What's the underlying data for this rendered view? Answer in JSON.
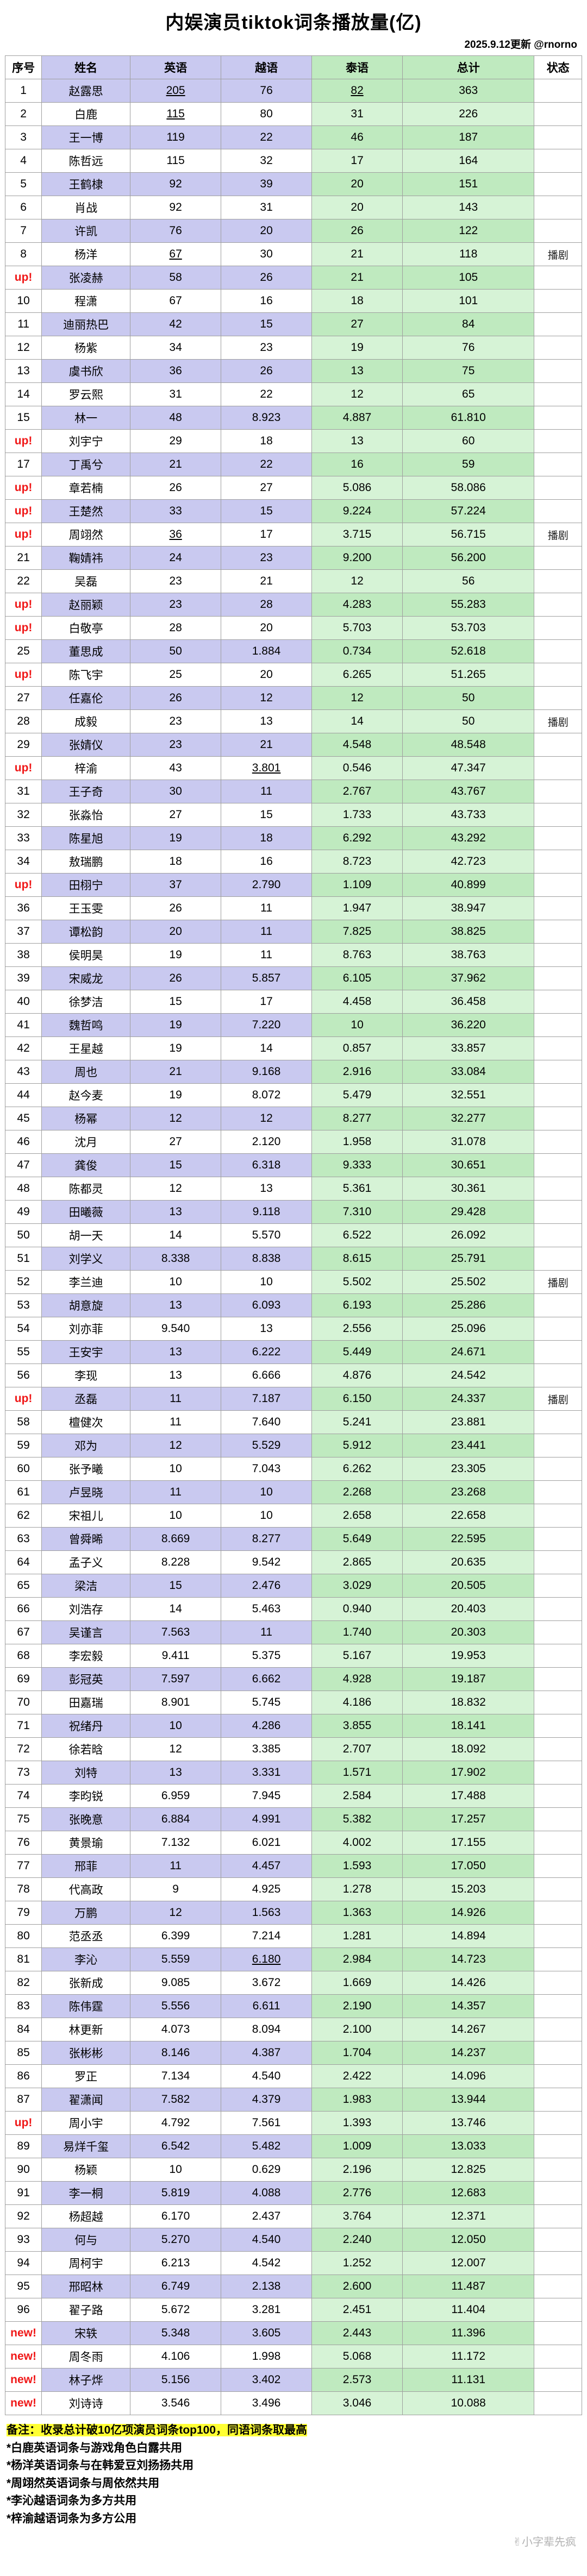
{
  "page": {
    "title": "内娱演员tiktok词条播放量(亿)",
    "updated": "2025.9.12更新 @rnorno",
    "watermark": "✌小字辈先疯"
  },
  "colors": {
    "lavender": "#c9c9f0",
    "green": "#bfeabf",
    "greenLight": "#d6f3d6",
    "markRed": "#f01818",
    "noteHighlight": "#ffff33",
    "border": "#9f9f9f",
    "watermarkGray": "#b2b2b2"
  },
  "chart_data": {
    "type": "table",
    "title": "内娱演员tiktok词条播放量(亿)",
    "unit": "亿",
    "columns": [
      "序号",
      "姓名",
      "英语",
      "越语",
      "泰语",
      "总计",
      "状态"
    ],
    "rows": [
      {
        "n": "1",
        "name": "赵露思",
        "en": "205",
        "vi": "76",
        "th": "82",
        "total": "363",
        "ul": [
          "en",
          "th"
        ]
      },
      {
        "n": "2",
        "name": "白鹿",
        "en": "115",
        "vi": "80",
        "th": "31",
        "total": "226",
        "ul": [
          "en"
        ]
      },
      {
        "n": "3",
        "name": "王一博",
        "en": "119",
        "vi": "22",
        "th": "46",
        "total": "187"
      },
      {
        "n": "4",
        "name": "陈哲远",
        "en": "115",
        "vi": "32",
        "th": "17",
        "total": "164"
      },
      {
        "n": "5",
        "name": "王鹤棣",
        "en": "92",
        "vi": "39",
        "th": "20",
        "total": "151"
      },
      {
        "n": "6",
        "name": "肖战",
        "en": "92",
        "vi": "31",
        "th": "20",
        "total": "143"
      },
      {
        "n": "7",
        "name": "许凯",
        "en": "76",
        "vi": "20",
        "th": "26",
        "total": "122"
      },
      {
        "n": "8",
        "name": "杨洋",
        "en": "67",
        "vi": "30",
        "th": "21",
        "total": "118",
        "status": "播剧",
        "ul": [
          "en"
        ]
      },
      {
        "n": "up!",
        "name": "张凌赫",
        "en": "58",
        "vi": "26",
        "th": "21",
        "total": "105"
      },
      {
        "n": "10",
        "name": "程潇",
        "en": "67",
        "vi": "16",
        "th": "18",
        "total": "101"
      },
      {
        "n": "11",
        "name": "迪丽热巴",
        "en": "42",
        "vi": "15",
        "th": "27",
        "total": "84"
      },
      {
        "n": "12",
        "name": "杨紫",
        "en": "34",
        "vi": "23",
        "th": "19",
        "total": "76"
      },
      {
        "n": "13",
        "name": "虞书欣",
        "en": "36",
        "vi": "26",
        "th": "13",
        "total": "75"
      },
      {
        "n": "14",
        "name": "罗云熙",
        "en": "31",
        "vi": "22",
        "th": "12",
        "total": "65"
      },
      {
        "n": "15",
        "name": "林一",
        "en": "48",
        "vi": "8.923",
        "th": "4.887",
        "total": "61.810"
      },
      {
        "n": "up!",
        "name": "刘宇宁",
        "en": "29",
        "vi": "18",
        "th": "13",
        "total": "60"
      },
      {
        "n": "17",
        "name": "丁禹兮",
        "en": "21",
        "vi": "22",
        "th": "16",
        "total": "59"
      },
      {
        "n": "up!",
        "name": "章若楠",
        "en": "26",
        "vi": "27",
        "th": "5.086",
        "total": "58.086"
      },
      {
        "n": "up!",
        "name": "王楚然",
        "en": "33",
        "vi": "15",
        "th": "9.224",
        "total": "57.224"
      },
      {
        "n": "up!",
        "name": "周翊然",
        "en": "36",
        "vi": "17",
        "th": "3.715",
        "total": "56.715",
        "status": "播剧",
        "ul": [
          "en"
        ]
      },
      {
        "n": "21",
        "name": "鞠婧祎",
        "en": "24",
        "vi": "23",
        "th": "9.200",
        "total": "56.200"
      },
      {
        "n": "22",
        "name": "吴磊",
        "en": "23",
        "vi": "21",
        "th": "12",
        "total": "56"
      },
      {
        "n": "up!",
        "name": "赵丽颖",
        "en": "23",
        "vi": "28",
        "th": "4.283",
        "total": "55.283"
      },
      {
        "n": "up!",
        "name": "白敬亭",
        "en": "28",
        "vi": "20",
        "th": "5.703",
        "total": "53.703"
      },
      {
        "n": "25",
        "name": "董思成",
        "en": "50",
        "vi": "1.884",
        "th": "0.734",
        "total": "52.618"
      },
      {
        "n": "up!",
        "name": "陈飞宇",
        "en": "25",
        "vi": "20",
        "th": "6.265",
        "total": "51.265"
      },
      {
        "n": "27",
        "name": "任嘉伦",
        "en": "26",
        "vi": "12",
        "th": "12",
        "total": "50"
      },
      {
        "n": "28",
        "name": "成毅",
        "en": "23",
        "vi": "13",
        "th": "14",
        "total": "50",
        "status": "播剧"
      },
      {
        "n": "29",
        "name": "张婧仪",
        "en": "23",
        "vi": "21",
        "th": "4.548",
        "total": "48.548"
      },
      {
        "n": "up!",
        "name": "梓渝",
        "en": "43",
        "vi": "3.801",
        "th": "0.546",
        "total": "47.347",
        "ul": [
          "vi"
        ]
      },
      {
        "n": "31",
        "name": "王子奇",
        "en": "30",
        "vi": "11",
        "th": "2.767",
        "total": "43.767"
      },
      {
        "n": "32",
        "name": "张淼怡",
        "en": "27",
        "vi": "15",
        "th": "1.733",
        "total": "43.733"
      },
      {
        "n": "33",
        "name": "陈星旭",
        "en": "19",
        "vi": "18",
        "th": "6.292",
        "total": "43.292"
      },
      {
        "n": "34",
        "name": "敖瑞鹏",
        "en": "18",
        "vi": "16",
        "th": "8.723",
        "total": "42.723"
      },
      {
        "n": "up!",
        "name": "田栩宁",
        "en": "37",
        "vi": "2.790",
        "th": "1.109",
        "total": "40.899"
      },
      {
        "n": "36",
        "name": "王玉雯",
        "en": "26",
        "vi": "11",
        "th": "1.947",
        "total": "38.947"
      },
      {
        "n": "37",
        "name": "谭松韵",
        "en": "20",
        "vi": "11",
        "th": "7.825",
        "total": "38.825"
      },
      {
        "n": "38",
        "name": "侯明昊",
        "en": "19",
        "vi": "11",
        "th": "8.763",
        "total": "38.763"
      },
      {
        "n": "39",
        "name": "宋威龙",
        "en": "26",
        "vi": "5.857",
        "th": "6.105",
        "total": "37.962"
      },
      {
        "n": "40",
        "name": "徐梦洁",
        "en": "15",
        "vi": "17",
        "th": "4.458",
        "total": "36.458"
      },
      {
        "n": "41",
        "name": "魏哲鸣",
        "en": "19",
        "vi": "7.220",
        "th": "10",
        "total": "36.220"
      },
      {
        "n": "42",
        "name": "王星越",
        "en": "19",
        "vi": "14",
        "th": "0.857",
        "total": "33.857"
      },
      {
        "n": "43",
        "name": "周也",
        "en": "21",
        "vi": "9.168",
        "th": "2.916",
        "total": "33.084"
      },
      {
        "n": "44",
        "name": "赵今麦",
        "en": "19",
        "vi": "8.072",
        "th": "5.479",
        "total": "32.551"
      },
      {
        "n": "45",
        "name": "杨幂",
        "en": "12",
        "vi": "12",
        "th": "8.277",
        "total": "32.277"
      },
      {
        "n": "46",
        "name": "沈月",
        "en": "27",
        "vi": "2.120",
        "th": "1.958",
        "total": "31.078"
      },
      {
        "n": "47",
        "name": "龚俊",
        "en": "15",
        "vi": "6.318",
        "th": "9.333",
        "total": "30.651"
      },
      {
        "n": "48",
        "name": "陈都灵",
        "en": "12",
        "vi": "13",
        "th": "5.361",
        "total": "30.361"
      },
      {
        "n": "49",
        "name": "田曦薇",
        "en": "13",
        "vi": "9.118",
        "th": "7.310",
        "total": "29.428"
      },
      {
        "n": "50",
        "name": "胡一天",
        "en": "14",
        "vi": "5.570",
        "th": "6.522",
        "total": "26.092"
      },
      {
        "n": "51",
        "name": "刘学义",
        "en": "8.338",
        "vi": "8.838",
        "th": "8.615",
        "total": "25.791"
      },
      {
        "n": "52",
        "name": "李兰迪",
        "en": "10",
        "vi": "10",
        "th": "5.502",
        "total": "25.502",
        "status": "播剧"
      },
      {
        "n": "53",
        "name": "胡意旋",
        "en": "13",
        "vi": "6.093",
        "th": "6.193",
        "total": "25.286"
      },
      {
        "n": "54",
        "name": "刘亦菲",
        "en": "9.540",
        "vi": "13",
        "th": "2.556",
        "total": "25.096"
      },
      {
        "n": "55",
        "name": "王安宇",
        "en": "13",
        "vi": "6.222",
        "th": "5.449",
        "total": "24.671"
      },
      {
        "n": "56",
        "name": "李现",
        "en": "13",
        "vi": "6.666",
        "th": "4.876",
        "total": "24.542"
      },
      {
        "n": "up!",
        "name": "丞磊",
        "en": "11",
        "vi": "7.187",
        "th": "6.150",
        "total": "24.337",
        "status": "播剧"
      },
      {
        "n": "58",
        "name": "檀健次",
        "en": "11",
        "vi": "7.640",
        "th": "5.241",
        "total": "23.881"
      },
      {
        "n": "59",
        "name": "邓为",
        "en": "12",
        "vi": "5.529",
        "th": "5.912",
        "total": "23.441"
      },
      {
        "n": "60",
        "name": "张予曦",
        "en": "10",
        "vi": "7.043",
        "th": "6.262",
        "total": "23.305"
      },
      {
        "n": "61",
        "name": "卢昱晓",
        "en": "11",
        "vi": "10",
        "th": "2.268",
        "total": "23.268"
      },
      {
        "n": "62",
        "name": "宋祖儿",
        "en": "10",
        "vi": "10",
        "th": "2.658",
        "total": "22.658"
      },
      {
        "n": "63",
        "name": "曾舜晞",
        "en": "8.669",
        "vi": "8.277",
        "th": "5.649",
        "total": "22.595"
      },
      {
        "n": "64",
        "name": "孟子义",
        "en": "8.228",
        "vi": "9.542",
        "th": "2.865",
        "total": "20.635"
      },
      {
        "n": "65",
        "name": "梁洁",
        "en": "15",
        "vi": "2.476",
        "th": "3.029",
        "total": "20.505"
      },
      {
        "n": "66",
        "name": "刘浩存",
        "en": "14",
        "vi": "5.463",
        "th": "0.940",
        "total": "20.403"
      },
      {
        "n": "67",
        "name": "吴谨言",
        "en": "7.563",
        "vi": "11",
        "th": "1.740",
        "total": "20.303"
      },
      {
        "n": "68",
        "name": "李宏毅",
        "en": "9.411",
        "vi": "5.375",
        "th": "5.167",
        "total": "19.953"
      },
      {
        "n": "69",
        "name": "彭冠英",
        "en": "7.597",
        "vi": "6.662",
        "th": "4.928",
        "total": "19.187"
      },
      {
        "n": "70",
        "name": "田嘉瑞",
        "en": "8.901",
        "vi": "5.745",
        "th": "4.186",
        "total": "18.832"
      },
      {
        "n": "71",
        "name": "祝绪丹",
        "en": "10",
        "vi": "4.286",
        "th": "3.855",
        "total": "18.141"
      },
      {
        "n": "72",
        "name": "徐若晗",
        "en": "12",
        "vi": "3.385",
        "th": "2.707",
        "total": "18.092"
      },
      {
        "n": "73",
        "name": "刘特",
        "en": "13",
        "vi": "3.331",
        "th": "1.571",
        "total": "17.902"
      },
      {
        "n": "74",
        "name": "李昀锐",
        "en": "6.959",
        "vi": "7.945",
        "th": "2.584",
        "total": "17.488"
      },
      {
        "n": "75",
        "name": "张晚意",
        "en": "6.884",
        "vi": "4.991",
        "th": "5.382",
        "total": "17.257"
      },
      {
        "n": "76",
        "name": "黄景瑜",
        "en": "7.132",
        "vi": "6.021",
        "th": "4.002",
        "total": "17.155"
      },
      {
        "n": "77",
        "name": "邢菲",
        "en": "11",
        "vi": "4.457",
        "th": "1.593",
        "total": "17.050"
      },
      {
        "n": "78",
        "name": "代高政",
        "en": "9",
        "vi": "4.925",
        "th": "1.278",
        "total": "15.203"
      },
      {
        "n": "79",
        "name": "万鹏",
        "en": "12",
        "vi": "1.563",
        "th": "1.363",
        "total": "14.926"
      },
      {
        "n": "80",
        "name": "范丞丞",
        "en": "6.399",
        "vi": "7.214",
        "th": "1.281",
        "total": "14.894"
      },
      {
        "n": "81",
        "name": "李沁",
        "en": "5.559",
        "vi": "6.180",
        "th": "2.984",
        "total": "14.723",
        "ul": [
          "vi"
        ]
      },
      {
        "n": "82",
        "name": "张新成",
        "en": "9.085",
        "vi": "3.672",
        "th": "1.669",
        "total": "14.426"
      },
      {
        "n": "83",
        "name": "陈伟霆",
        "en": "5.556",
        "vi": "6.611",
        "th": "2.190",
        "total": "14.357"
      },
      {
        "n": "84",
        "name": "林更新",
        "en": "4.073",
        "vi": "8.094",
        "th": "2.100",
        "total": "14.267"
      },
      {
        "n": "85",
        "name": "张彬彬",
        "en": "8.146",
        "vi": "4.387",
        "th": "1.704",
        "total": "14.237"
      },
      {
        "n": "86",
        "name": "罗正",
        "en": "7.134",
        "vi": "4.540",
        "th": "2.422",
        "total": "14.096"
      },
      {
        "n": "87",
        "name": "翟潇闻",
        "en": "7.582",
        "vi": "4.379",
        "th": "1.983",
        "total": "13.944"
      },
      {
        "n": "up!",
        "name": "周小宇",
        "en": "4.792",
        "vi": "7.561",
        "th": "1.393",
        "total": "13.746"
      },
      {
        "n": "89",
        "name": "易烊千玺",
        "en": "6.542",
        "vi": "5.482",
        "th": "1.009",
        "total": "13.033"
      },
      {
        "n": "90",
        "name": "杨颖",
        "en": "10",
        "vi": "0.629",
        "th": "2.196",
        "total": "12.825"
      },
      {
        "n": "91",
        "name": "李一桐",
        "en": "5.819",
        "vi": "4.088",
        "th": "2.776",
        "total": "12.683"
      },
      {
        "n": "92",
        "name": "杨超越",
        "en": "6.170",
        "vi": "2.437",
        "th": "3.764",
        "total": "12.371"
      },
      {
        "n": "93",
        "name": "何与",
        "en": "5.270",
        "vi": "4.540",
        "th": "2.240",
        "total": "12.050"
      },
      {
        "n": "94",
        "name": "周柯宇",
        "en": "6.213",
        "vi": "4.542",
        "th": "1.252",
        "total": "12.007"
      },
      {
        "n": "95",
        "name": "邢昭林",
        "en": "6.749",
        "vi": "2.138",
        "th": "2.600",
        "total": "11.487"
      },
      {
        "n": "96",
        "name": "翟子路",
        "en": "5.672",
        "vi": "3.281",
        "th": "2.451",
        "total": "11.404"
      },
      {
        "n": "new!",
        "name": "宋轶",
        "en": "5.348",
        "vi": "3.605",
        "th": "2.443",
        "total": "11.396"
      },
      {
        "n": "new!",
        "name": "周冬雨",
        "en": "4.106",
        "vi": "1.998",
        "th": "5.068",
        "total": "11.172"
      },
      {
        "n": "new!",
        "name": "林子烨",
        "en": "5.156",
        "vi": "3.402",
        "th": "2.573",
        "total": "11.131"
      },
      {
        "n": "new!",
        "name": "刘诗诗",
        "en": "3.546",
        "vi": "3.496",
        "th": "3.046",
        "total": "10.088"
      }
    ]
  },
  "notes": [
    "备注：收录总计破10亿项演员词条top100，同语词条取最高",
    "*白鹿英语词条与游戏角色白露共用",
    "*杨洋英语词条与在韩爱豆刘扬扬共用",
    "*周翊然英语词条与周依然共用",
    "*李沁越语词条为多方共用",
    "*梓渝越语词条为多方公用"
  ]
}
